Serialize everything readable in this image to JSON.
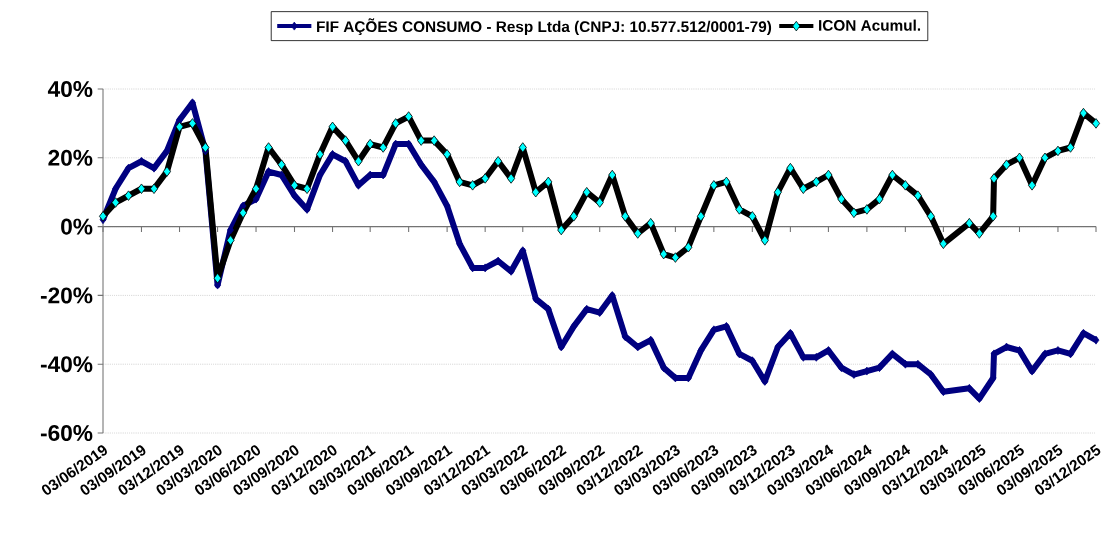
{
  "chart_data": {
    "type": "line",
    "marker": "diamond",
    "line_style": "solid",
    "grid": "y",
    "legend": "top",
    "x": [
      "2019-06-03",
      "2019-07-03",
      "2019-08-03",
      "2019-09-03",
      "2019-10-03",
      "2019-11-03",
      "2019-12-03",
      "2020-01-03",
      "2020-02-03",
      "2020-03-03",
      "2020-04-03",
      "2020-05-03",
      "2020-06-03",
      "2020-07-03",
      "2020-08-03",
      "2020-09-03",
      "2020-10-03",
      "2020-11-03",
      "2020-12-03",
      "2021-01-03",
      "2021-02-03",
      "2021-03-03",
      "2021-04-03",
      "2021-05-03",
      "2021-06-03",
      "2021-07-03",
      "2021-08-03",
      "2021-09-03",
      "2021-10-03",
      "2021-11-03",
      "2021-12-03",
      "2022-01-03",
      "2022-02-03",
      "2022-03-03",
      "2022-04-03",
      "2022-05-03",
      "2022-06-03",
      "2022-07-03",
      "2022-08-03",
      "2022-09-03",
      "2022-10-03",
      "2022-11-03",
      "2022-12-03",
      "2023-01-03",
      "2023-02-03",
      "2023-03-03",
      "2023-04-03",
      "2023-05-03",
      "2023-06-03",
      "2023-07-03",
      "2023-08-03",
      "2023-09-03",
      "2023-10-03",
      "2023-11-03",
      "2023-12-03",
      "2024-01-03",
      "2024-02-03",
      "2024-03-03",
      "2024-04-03",
      "2024-05-03",
      "2024-06-03",
      "2024-07-03",
      "2024-08-03",
      "2024-09-03",
      "2024-10-03",
      "2024-11-03",
      "2024-12-03",
      "2025-02-03",
      "2025-02-27",
      "2025-04-01",
      "2025-04-03",
      "2025-05-03",
      "2025-06-03",
      "2025-07-03",
      "2025-08-03",
      "2025-09-03",
      "2025-10-03",
      "2025-11-03",
      "2025-12-03"
    ],
    "series": [
      {
        "name": "FIF AÇÕES CONSUMO - Resp Ltda (CNPJ: 10.577.512/0001-79)",
        "color": "#000080",
        "values": [
          2,
          11,
          17,
          19,
          17,
          22,
          31,
          36,
          22,
          -17,
          -1,
          6,
          8,
          16,
          15,
          9,
          5,
          15,
          21,
          19,
          12,
          15,
          15,
          24,
          24,
          18,
          13,
          6,
          -5,
          -12,
          -12,
          -10,
          -13,
          -7,
          -21,
          -24,
          -35,
          -29,
          -24,
          -25,
          -20,
          -32,
          -35,
          -33,
          -41,
          -44,
          -44,
          -36,
          -30,
          -29,
          -37,
          -39,
          -45,
          -35,
          -31,
          -38,
          -38,
          -36,
          -41,
          -43,
          -42,
          -41,
          -37,
          -40,
          -40,
          -43,
          -48,
          -47,
          -50,
          -44,
          -37,
          -35,
          -36,
          -42,
          -37,
          -36,
          -37,
          -31,
          -33
        ]
      },
      {
        "name": "ICON Acumul.",
        "color": "#000000",
        "values": [
          3,
          7,
          9,
          11,
          11,
          16,
          29,
          30,
          23,
          -15,
          -4,
          4,
          11,
          23,
          18,
          12,
          11,
          21,
          29,
          25,
          19,
          24,
          23,
          30,
          32,
          25,
          25,
          21,
          13,
          12,
          14,
          19,
          14,
          23,
          10,
          13,
          -1,
          3,
          10,
          7,
          15,
          3,
          -2,
          1,
          -8,
          -9,
          -6,
          3,
          12,
          13,
          5,
          3,
          -4,
          10,
          17,
          11,
          13,
          15,
          8,
          4,
          5,
          8,
          15,
          12,
          9,
          3,
          -5,
          1,
          -2,
          3,
          14,
          18,
          20,
          12,
          20,
          22,
          23,
          33,
          30
        ]
      }
    ],
    "xlim": [
      "2019-06-03",
      "2025-12-03"
    ],
    "xticks": [
      {
        "value": "2019-06-03",
        "label": "03/06/2019"
      },
      {
        "value": "2019-09-03",
        "label": "03/09/2019"
      },
      {
        "value": "2019-12-03",
        "label": "03/12/2019"
      },
      {
        "value": "2020-03-03",
        "label": "03/03/2020"
      },
      {
        "value": "2020-06-03",
        "label": "03/06/2020"
      },
      {
        "value": "2020-09-03",
        "label": "03/09/2020"
      },
      {
        "value": "2020-12-03",
        "label": "03/12/2020"
      },
      {
        "value": "2021-03-03",
        "label": "03/03/2021"
      },
      {
        "value": "2021-06-03",
        "label": "03/06/2021"
      },
      {
        "value": "2021-09-03",
        "label": "03/09/2021"
      },
      {
        "value": "2021-12-03",
        "label": "03/12/2021"
      },
      {
        "value": "2022-03-03",
        "label": "03/03/2022"
      },
      {
        "value": "2022-06-03",
        "label": "03/06/2022"
      },
      {
        "value": "2022-09-03",
        "label": "03/09/2022"
      },
      {
        "value": "2022-12-03",
        "label": "03/12/2022"
      },
      {
        "value": "2023-03-03",
        "label": "03/03/2023"
      },
      {
        "value": "2023-06-03",
        "label": "03/06/2023"
      },
      {
        "value": "2023-09-03",
        "label": "03/09/2023"
      },
      {
        "value": "2023-12-03",
        "label": "03/12/2023"
      },
      {
        "value": "2024-03-03",
        "label": "03/03/2024"
      },
      {
        "value": "2024-06-03",
        "label": "03/06/2024"
      },
      {
        "value": "2024-09-03",
        "label": "03/09/2024"
      },
      {
        "value": "2024-12-03",
        "label": "03/12/2024"
      },
      {
        "value": "2025-03-03",
        "label": "03/03/2025"
      },
      {
        "value": "2025-06-03",
        "label": "03/06/2025"
      },
      {
        "value": "2025-09-03",
        "label": "03/09/2025"
      },
      {
        "value": "2025-12-03",
        "label": "03/12/2025"
      }
    ],
    "ylim": [
      -60,
      40
    ],
    "yticks": [
      {
        "value": -60,
        "label": "-60%"
      },
      {
        "value": -40,
        "label": "-40%"
      },
      {
        "value": -20,
        "label": "-20%"
      },
      {
        "value": 0,
        "label": "0%"
      },
      {
        "value": 20,
        "label": "20%"
      },
      {
        "value": 40,
        "label": "40%"
      }
    ]
  }
}
